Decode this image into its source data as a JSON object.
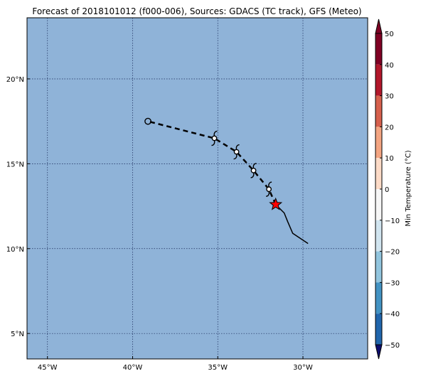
{
  "title": "Forecast of 2018101012 (f000-006), Sources: GDACS (TC track), GFS (Meteo)",
  "map": {
    "ocean_color": "#8fb3d8",
    "grid": true,
    "lon_range": [
      -46.2,
      -26.2
    ],
    "lat_range": [
      3.5,
      23.6
    ],
    "lon_ticks": [
      {
        "value": -45,
        "label": "45°W"
      },
      {
        "value": -40,
        "label": "40°W"
      },
      {
        "value": -35,
        "label": "35°W"
      },
      {
        "value": -30,
        "label": "30°W"
      }
    ],
    "lat_ticks": [
      {
        "value": 5,
        "label": "5°N"
      },
      {
        "value": 10,
        "label": "10°N"
      },
      {
        "value": 15,
        "label": "15°N"
      },
      {
        "value": 20,
        "label": "20°N"
      }
    ]
  },
  "track": {
    "forecast_points": [
      {
        "lon": -31.6,
        "lat": 12.6
      },
      {
        "lon": -32.0,
        "lat": 13.5
      },
      {
        "lon": -32.9,
        "lat": 14.6
      },
      {
        "lon": -33.9,
        "lat": 15.7
      },
      {
        "lon": -35.2,
        "lat": 16.5
      },
      {
        "lon": -39.1,
        "lat": 17.5
      }
    ],
    "forecast_icons": [
      "hurricane-symbol",
      "hurricane-symbol",
      "hurricane-symbol",
      "hurricane-symbol"
    ],
    "last_point_icon": "circle",
    "past_track": [
      {
        "lon": -31.6,
        "lat": 12.6
      },
      {
        "lon": -31.1,
        "lat": 12.1
      },
      {
        "lon": -30.9,
        "lat": 11.6
      },
      {
        "lon": -30.6,
        "lat": 10.9
      },
      {
        "lon": -29.7,
        "lat": 10.3
      }
    ],
    "current_position": {
      "lon": -31.6,
      "lat": 12.6,
      "icon": "star",
      "color": "#ff0000"
    }
  },
  "colorbar": {
    "label": "Min Temperature (°C)",
    "ticks": [
      "50",
      "40",
      "30",
      "20",
      "10",
      "0",
      "−10",
      "−20",
      "−30",
      "−40",
      "−50"
    ],
    "colors": [
      "#7f0024",
      "#b2172b",
      "#d6604d",
      "#f4a582",
      "#fddbc7",
      "#f7f7f7",
      "#d1e5f0",
      "#92c5de",
      "#4393c3",
      "#2166ac",
      "#2a2a8c"
    ],
    "extend_top_color": "#7f0024",
    "extend_bottom_color": "#0d0d6e"
  }
}
